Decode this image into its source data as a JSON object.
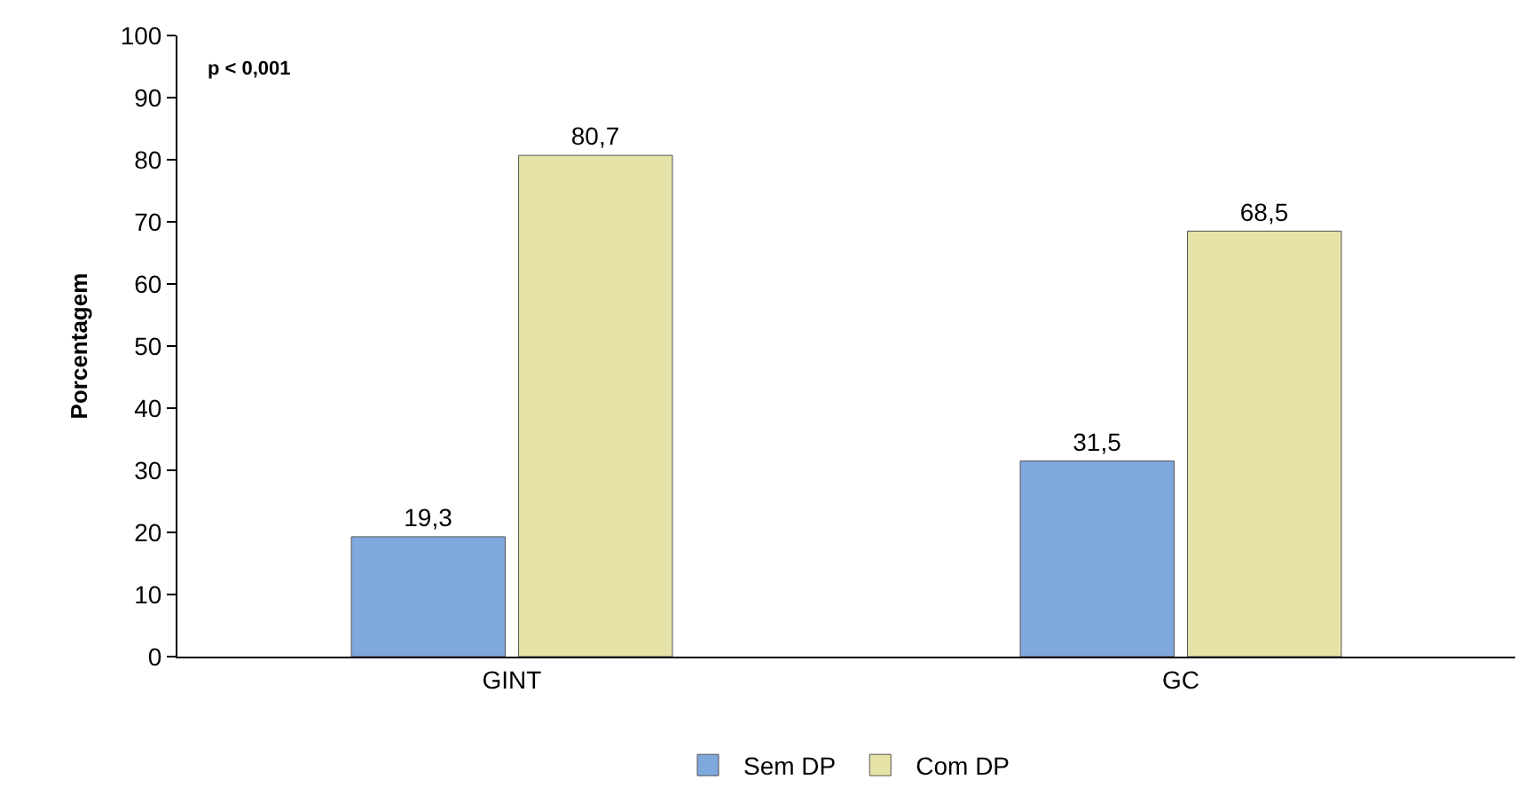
{
  "chart_data": {
    "type": "bar",
    "ylabel": "Porcentagem",
    "categories": [
      "GINT",
      "GC"
    ],
    "series": [
      {
        "name": "Sem DP",
        "color": "#7fa8dc",
        "values": [
          19.3,
          31.5
        ],
        "value_labels": [
          "19,3",
          "31,5"
        ]
      },
      {
        "name": "Com DP",
        "color": "#e6e3a8",
        "values": [
          80.7,
          68.5
        ],
        "value_labels": [
          "80,7",
          "68,5"
        ]
      }
    ],
    "ylim": [
      0,
      100
    ],
    "yticks": [
      0,
      10,
      20,
      30,
      40,
      50,
      60,
      70,
      80,
      90,
      100
    ],
    "annotations": [
      "p < 0,001"
    ],
    "legend": "bottom"
  }
}
